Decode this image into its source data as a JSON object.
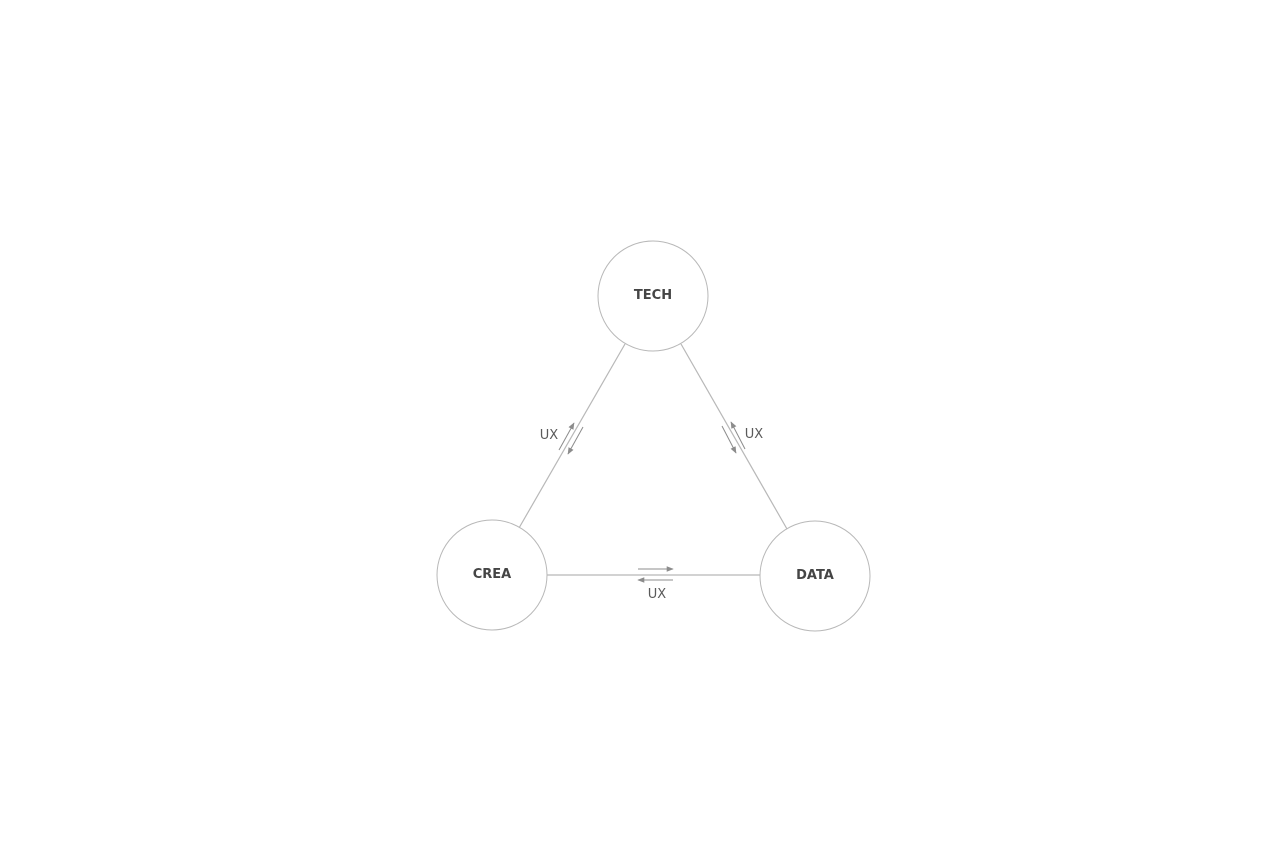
{
  "nodes": {
    "tech": {
      "label": "TECH"
    },
    "crea": {
      "label": "CREA"
    },
    "data": {
      "label": "DATA"
    }
  },
  "edges": {
    "tech_crea": {
      "label": "UX"
    },
    "tech_data": {
      "label": "UX"
    },
    "crea_data": {
      "label": "UX"
    }
  }
}
